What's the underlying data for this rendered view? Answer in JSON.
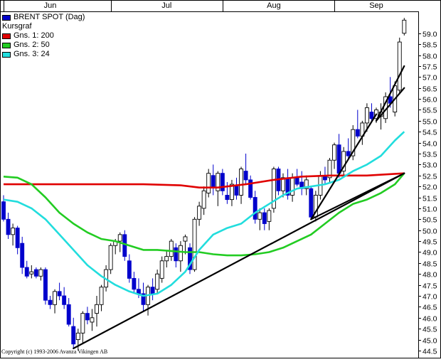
{
  "chart_data": {
    "type": "candlestick",
    "title": "BRENT SPOT (Dag)",
    "subtitle": "Kursgraf",
    "legend": [
      {
        "label": "BRENT SPOT (Dag)",
        "color": "#0000cc"
      },
      {
        "label": "Kursgraf",
        "color": ""
      },
      {
        "label": "Gns. 1: 200",
        "color": "#e00000"
      },
      {
        "label": "Gns. 2: 50",
        "color": "#22cc22"
      },
      {
        "label": "Gns. 3: 24",
        "color": "#22dddd"
      }
    ],
    "x_axis_labels": [
      {
        "label": "Jun",
        "day": 10
      },
      {
        "label": "Jul",
        "day": 35
      },
      {
        "label": "Aug",
        "day": 58
      },
      {
        "label": "Sep",
        "day": 80
      }
    ],
    "month_dividers": [
      0,
      23,
      47,
      71
    ],
    "ylim": [
      44.4,
      60.0
    ],
    "y_ticks": [
      44.5,
      45.0,
      45.5,
      46.0,
      46.5,
      47.0,
      47.5,
      48.0,
      48.5,
      49.0,
      49.5,
      50.0,
      50.5,
      51.0,
      51.5,
      52.0,
      52.5,
      53.0,
      53.5,
      54.0,
      54.5,
      55.0,
      55.5,
      56.0,
      56.5,
      57.0,
      57.5,
      58.0,
      58.5,
      59.0
    ],
    "y_tick_labels": [
      "44.5",
      "45.0",
      "45.5",
      "46.0",
      "46.5",
      "47.0",
      "47.5",
      "48.0",
      "48.5",
      "49.0",
      "49.5",
      "50.0",
      "50.5",
      "51.0",
      "51.5",
      "52.0",
      "52.5",
      "53.0",
      "53.5",
      "54.0",
      "54.5",
      "55.0",
      "55.5",
      "56.0",
      "56.5",
      "57.0",
      "57.5",
      "58.0",
      "58.5",
      "59.0"
    ],
    "n_days": 92,
    "candles": [
      [
        0,
        51.3,
        51.6,
        50.4,
        50.5
      ],
      [
        1,
        50.5,
        50.8,
        49.6,
        49.8
      ],
      [
        2,
        49.8,
        50.3,
        49.3,
        50.1
      ],
      [
        3,
        50.1,
        50.2,
        48.9,
        49.2
      ],
      [
        4,
        49.4,
        49.7,
        48.0,
        48.3
      ],
      [
        5,
        48.3,
        48.6,
        47.8,
        47.9
      ],
      [
        6,
        48.0,
        48.4,
        47.8,
        48.1
      ],
      [
        7,
        48.2,
        48.3,
        47.8,
        47.9
      ],
      [
        8,
        47.9,
        48.3,
        47.7,
        48.2
      ],
      [
        9,
        48.2,
        48.3,
        46.6,
        46.8
      ],
      [
        10,
        46.8,
        47.0,
        46.4,
        46.6
      ],
      [
        11,
        46.6,
        47.3,
        46.2,
        47.2
      ],
      [
        12,
        47.2,
        47.6,
        46.8,
        47.0
      ],
      [
        13,
        47.0,
        47.4,
        46.4,
        46.6
      ],
      [
        14,
        46.6,
        46.9,
        45.6,
        45.7
      ],
      [
        15,
        45.6,
        46.0,
        44.6,
        44.8
      ],
      [
        16,
        45.0,
        45.5,
        44.5,
        45.3
      ],
      [
        17,
        45.3,
        46.3,
        44.8,
        46.2
      ],
      [
        18,
        46.2,
        46.5,
        45.7,
        45.9
      ],
      [
        19,
        45.8,
        46.4,
        45.4,
        46.0
      ],
      [
        20,
        46.2,
        47.0,
        45.6,
        46.6
      ],
      [
        21,
        46.6,
        47.5,
        46.3,
        47.4
      ],
      [
        22,
        47.4,
        48.4,
        47.2,
        48.2
      ],
      [
        23,
        48.2,
        49.4,
        48.0,
        49.3
      ],
      [
        24,
        49.3,
        49.6,
        48.9,
        49.5
      ],
      [
        25,
        49.5,
        49.9,
        49.0,
        49.8
      ],
      [
        26,
        49.8,
        50.0,
        48.6,
        48.8
      ],
      [
        27,
        48.6,
        48.9,
        47.6,
        47.8
      ],
      [
        28,
        47.8,
        48.1,
        47.1,
        47.3
      ],
      [
        29,
        47.3,
        47.8,
        46.9,
        47.1
      ],
      [
        30,
        47.1,
        47.6,
        46.3,
        46.6
      ],
      [
        31,
        46.6,
        47.5,
        46.1,
        47.4
      ],
      [
        32,
        47.4,
        47.8,
        46.8,
        47.1
      ],
      [
        33,
        47.3,
        48.2,
        47.1,
        48.0
      ],
      [
        34,
        47.8,
        48.8,
        47.6,
        48.6
      ],
      [
        35,
        48.6,
        49.1,
        48.3,
        48.8
      ],
      [
        36,
        48.8,
        49.6,
        48.6,
        49.5
      ],
      [
        37,
        49.2,
        49.4,
        48.3,
        48.6
      ],
      [
        38,
        48.6,
        49.5,
        48.1,
        49.3
      ],
      [
        39,
        49.5,
        49.8,
        48.9,
        49.7
      ],
      [
        40,
        49.2,
        49.4,
        48.0,
        48.2
      ],
      [
        41,
        48.2,
        50.6,
        48.1,
        50.5
      ],
      [
        42,
        50.5,
        51.3,
        50.2,
        51.1
      ],
      [
        43,
        51.0,
        52.0,
        50.7,
        51.8
      ],
      [
        44,
        51.7,
        52.8,
        51.5,
        52.6
      ],
      [
        45,
        52.5,
        53.0,
        51.6,
        52.0
      ],
      [
        46,
        51.8,
        52.7,
        51.1,
        52.6
      ],
      [
        47,
        52.6,
        52.8,
        51.6,
        51.8
      ],
      [
        48,
        51.6,
        52.2,
        51.2,
        51.4
      ],
      [
        49,
        51.4,
        52.3,
        51.1,
        52.1
      ],
      [
        50,
        52.0,
        52.4,
        51.4,
        51.6
      ],
      [
        51,
        51.6,
        52.9,
        51.2,
        52.8
      ],
      [
        52,
        52.7,
        53.5,
        52.1,
        52.3
      ],
      [
        53,
        52.3,
        52.5,
        51.4,
        51.5
      ],
      [
        54,
        51.5,
        51.8,
        50.3,
        50.5
      ],
      [
        55,
        50.5,
        51.0,
        50.0,
        50.8
      ],
      [
        56,
        50.8,
        51.0,
        50.0,
        50.3
      ],
      [
        57,
        50.4,
        51.0,
        50.0,
        50.9
      ],
      [
        58,
        51.0,
        52.9,
        50.8,
        52.8
      ],
      [
        59,
        52.8,
        52.9,
        51.6,
        51.8
      ],
      [
        60,
        51.8,
        52.6,
        51.5,
        52.4
      ],
      [
        61,
        52.4,
        52.8,
        51.4,
        51.6
      ],
      [
        62,
        51.6,
        52.6,
        51.3,
        52.4
      ],
      [
        63,
        52.4,
        52.8,
        52.0,
        52.1
      ],
      [
        64,
        52.2,
        52.7,
        51.6,
        51.9
      ],
      [
        65,
        51.9,
        52.5,
        51.6,
        52.3
      ],
      [
        66,
        51.9,
        52.0,
        50.5,
        50.6
      ],
      [
        67,
        50.6,
        51.8,
        50.4,
        51.6
      ],
      [
        68,
        51.6,
        52.7,
        51.4,
        52.5
      ],
      [
        69,
        52.5,
        52.9,
        52.1,
        52.3
      ],
      [
        70,
        52.4,
        53.3,
        52.2,
        53.2
      ],
      [
        71,
        53.2,
        54.0,
        52.8,
        53.9
      ],
      [
        72,
        53.9,
        54.4,
        52.4,
        52.6
      ],
      [
        73,
        52.7,
        53.8,
        52.5,
        53.6
      ],
      [
        74,
        53.6,
        54.2,
        53.2,
        53.4
      ],
      [
        75,
        53.4,
        54.8,
        53.2,
        54.6
      ],
      [
        76,
        54.6,
        55.5,
        54.2,
        54.3
      ],
      [
        77,
        54.3,
        55.0,
        53.9,
        54.9
      ],
      [
        78,
        54.9,
        55.8,
        54.5,
        55.6
      ],
      [
        79,
        55.4,
        55.8,
        55.0,
        55.1
      ],
      [
        80,
        55.1,
        55.6,
        54.9,
        55.5
      ],
      [
        81,
        55.2,
        55.8,
        54.6,
        55.4
      ],
      [
        82,
        55.1,
        56.3,
        54.9,
        56.1
      ],
      [
        83,
        56.1,
        57.0,
        55.6,
        55.8
      ],
      [
        84,
        55.4,
        56.8,
        55.2,
        56.6
      ],
      [
        85,
        56.4,
        58.8,
        56.2,
        58.6
      ],
      [
        86,
        59.0,
        59.7,
        58.9,
        59.6
      ]
    ],
    "moving_averages": [
      {
        "name": "Gns. 1: 200",
        "color": "#e00000",
        "points": [
          [
            0,
            52.1
          ],
          [
            10,
            52.1
          ],
          [
            20,
            52.1
          ],
          [
            30,
            52.1
          ],
          [
            38,
            52.05
          ],
          [
            42,
            51.95
          ],
          [
            46,
            51.95
          ],
          [
            52,
            52.1
          ],
          [
            58,
            52.3
          ],
          [
            64,
            52.45
          ],
          [
            70,
            52.5
          ],
          [
            78,
            52.5
          ],
          [
            86,
            52.6
          ]
        ]
      },
      {
        "name": "Gns. 2: 50",
        "color": "#22cc22",
        "points": [
          [
            0,
            52.45
          ],
          [
            3,
            52.4
          ],
          [
            6,
            52.1
          ],
          [
            9,
            51.5
          ],
          [
            12,
            50.8
          ],
          [
            15,
            50.3
          ],
          [
            18,
            49.9
          ],
          [
            21,
            49.6
          ],
          [
            24,
            49.5
          ],
          [
            27,
            49.3
          ],
          [
            30,
            49.1
          ],
          [
            33,
            49.1
          ],
          [
            36,
            49.05
          ],
          [
            39,
            49.0
          ],
          [
            42,
            49.0
          ],
          [
            45,
            48.9
          ],
          [
            48,
            48.85
          ],
          [
            51,
            48.85
          ],
          [
            54,
            48.9
          ],
          [
            57,
            49.0
          ],
          [
            60,
            49.2
          ],
          [
            63,
            49.5
          ],
          [
            66,
            49.8
          ],
          [
            69,
            50.3
          ],
          [
            72,
            50.8
          ],
          [
            75,
            51.2
          ],
          [
            78,
            51.4
          ],
          [
            81,
            51.7
          ],
          [
            84,
            52.1
          ],
          [
            86,
            52.6
          ]
        ]
      },
      {
        "name": "Gns. 3: 24",
        "color": "#22dddd",
        "points": [
          [
            0,
            51.4
          ],
          [
            3,
            51.3
          ],
          [
            6,
            51.0
          ],
          [
            9,
            50.5
          ],
          [
            12,
            49.8
          ],
          [
            15,
            49.1
          ],
          [
            18,
            48.4
          ],
          [
            21,
            47.9
          ],
          [
            24,
            47.5
          ],
          [
            27,
            47.2
          ],
          [
            30,
            47.0
          ],
          [
            33,
            47.1
          ],
          [
            36,
            47.5
          ],
          [
            39,
            48.1
          ],
          [
            42,
            49.1
          ],
          [
            45,
            49.8
          ],
          [
            48,
            50.1
          ],
          [
            51,
            50.3
          ],
          [
            54,
            50.8
          ],
          [
            57,
            51.2
          ],
          [
            60,
            51.6
          ],
          [
            63,
            51.9
          ],
          [
            66,
            52.0
          ],
          [
            69,
            52.1
          ],
          [
            72,
            52.3
          ],
          [
            75,
            52.7
          ],
          [
            78,
            53.0
          ],
          [
            81,
            53.4
          ],
          [
            84,
            54.1
          ],
          [
            86,
            54.5
          ]
        ]
      }
    ],
    "trend_lines": [
      [
        [
          15,
          44.6
        ],
        [
          86,
          52.6
        ]
      ],
      [
        [
          66,
          50.5
        ],
        [
          86,
          52.6
        ]
      ],
      [
        [
          66,
          50.5
        ],
        [
          80,
          55.3
        ]
      ],
      [
        [
          80,
          55.0
        ],
        [
          86,
          57.5
        ]
      ],
      [
        [
          80,
          55.0
        ],
        [
          86,
          56.5
        ]
      ]
    ],
    "copyright": "Copyright (c) 1993-2006 Avanza Vikingen AB"
  }
}
